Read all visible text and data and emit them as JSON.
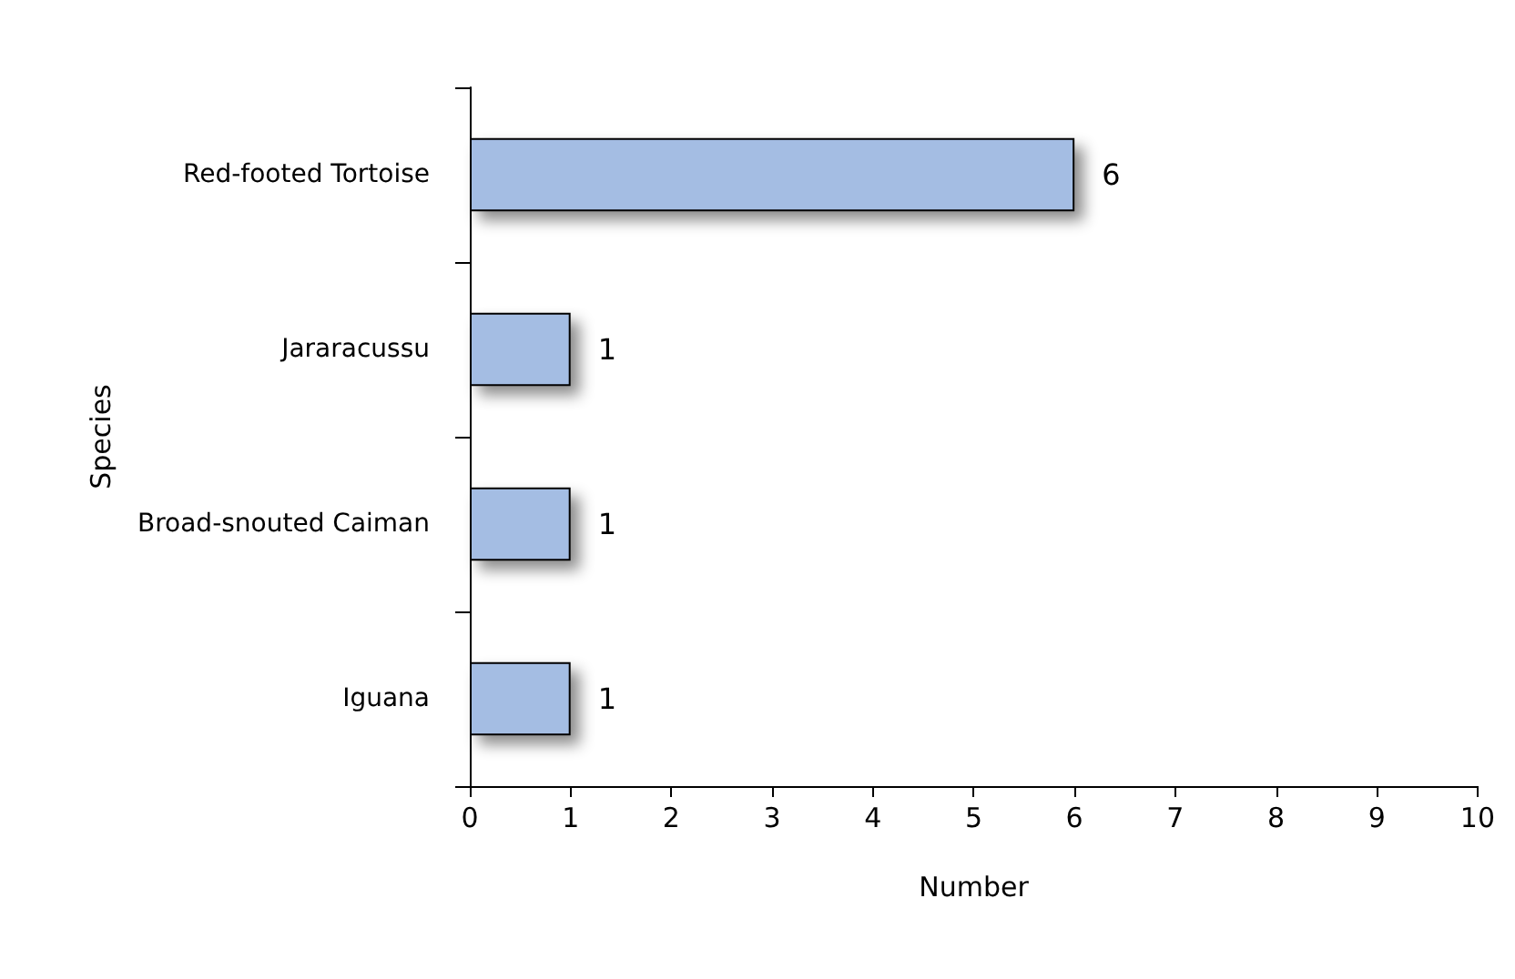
{
  "chart_data": {
    "type": "bar",
    "orientation": "horizontal",
    "xlabel": "Number",
    "ylabel": "Species",
    "categories": [
      "Red-footed Tortoise",
      "Jararacussu",
      "Broad-snouted Caiman",
      "Iguana"
    ],
    "values": [
      6,
      1,
      1,
      1
    ],
    "color": "#a4bde3",
    "xlim": [
      0,
      10
    ],
    "xticks": [
      0,
      1,
      2,
      3,
      4,
      5,
      6,
      7,
      8,
      9,
      10
    ],
    "grid": false,
    "data_labels": true
  }
}
